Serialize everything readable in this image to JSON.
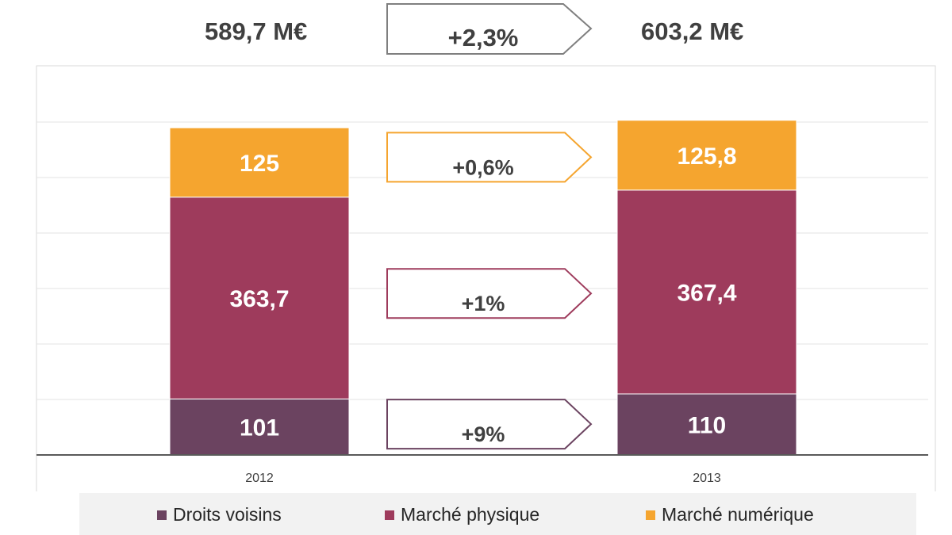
{
  "header": {
    "total_left": "589,7 M€",
    "total_right": "603,2 M€",
    "total_change": "+2,3%"
  },
  "chart_data": {
    "type": "bar",
    "stacked": true,
    "categories": [
      "2012",
      "2013"
    ],
    "series": [
      {
        "name": "Droits voisins",
        "values": [
          101,
          110
        ],
        "labels": [
          "101",
          "110"
        ],
        "color": "#6b4360"
      },
      {
        "name": "Marché physique",
        "values": [
          363.7,
          367.4
        ],
        "labels": [
          "363,7",
          "367,4"
        ],
        "color": "#9e3b5c"
      },
      {
        "name": "Marché numérique",
        "values": [
          125,
          125.8
        ],
        "labels": [
          "125",
          "125,8"
        ],
        "color": "#f5a52f"
      }
    ],
    "changes": [
      {
        "series": "Droits voisins",
        "label": "+9%",
        "color": "#6b4360"
      },
      {
        "series": "Marché physique",
        "label": "+1%",
        "color": "#9e3b5c"
      },
      {
        "series": "Marché numérique",
        "label": "+0,6%",
        "color": "#f5a52f"
      }
    ],
    "ylim": [
      0,
      650
    ],
    "grid": true,
    "legend_position": "bottom"
  }
}
